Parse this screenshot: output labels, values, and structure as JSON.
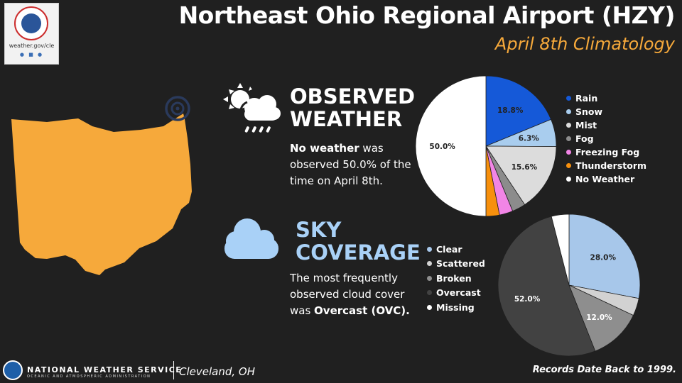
{
  "header": {
    "title": "Northeast Ohio Regional Airport (HZY)",
    "subtitle": "April 8th Climatology"
  },
  "logo": {
    "url": "weather.gov/cle",
    "social": "● ■ ●"
  },
  "observed": {
    "title_line1": "OBSERVED",
    "title_line2": "WEATHER",
    "desc_bold": "No weather",
    "desc_rest": " was observed 50.0% of the time on April 8th."
  },
  "sky": {
    "title_line1": "SKY",
    "title_line2": "COVERAGE",
    "desc_pre": "The most frequently observed cloud cover was ",
    "desc_bold": "Overcast (OVC)."
  },
  "footer": {
    "nws": "NATIONAL WEATHER SERVICE",
    "nws_sub": "OCEANIC AND ATMOSPHERIC ADMINISTRATION",
    "office": "Cleveland, OH",
    "records": "Records Date Back to 1999."
  },
  "icons": {
    "observed": "sun-cloud-rain-icon",
    "sky": "cloud-icon",
    "map": "ohio-map",
    "target": "airport-location-target-icon"
  },
  "colors": {
    "accent_orange": "#f6a93b",
    "sky_blue": "#a9d1f7",
    "ohio": "#f6a93b"
  },
  "chart_data": [
    {
      "type": "pie",
      "name": "Observed Weather",
      "categories": [
        "Rain",
        "Snow",
        "Mist",
        "Fog",
        "Freezing Fog",
        "Thunderstorm",
        "No Weather"
      ],
      "values": [
        18.8,
        6.3,
        15.6,
        3.1,
        3.1,
        3.1,
        50.0
      ],
      "labels": [
        "18.8%",
        "6.3%",
        "15.6%",
        "",
        "",
        "",
        "50.0%"
      ],
      "colors": [
        "#1559d8",
        "#a9cdee",
        "#dcdcdc",
        "#8c8c8c",
        "#f285e6",
        "#f7900d",
        "#ffffff"
      ],
      "legend_colors": [
        "#1559d8",
        "#a9cdee",
        "#dcdcdc",
        "#8c8c8c",
        "#f285e6",
        "#f7900d",
        "#ffffff"
      ],
      "legend_position": "right"
    },
    {
      "type": "pie",
      "name": "Sky Coverage",
      "categories": [
        "Clear",
        "Scattered",
        "Broken",
        "Overcast",
        "Missing"
      ],
      "values": [
        28.0,
        4.0,
        12.0,
        52.0,
        4.0
      ],
      "labels": [
        "28.0%",
        "",
        "12.0%",
        "52.0%",
        ""
      ],
      "colors": [
        "#a7c7ea",
        "#d2d2d2",
        "#8e8e8e",
        "#424242",
        "#ffffff"
      ],
      "legend_colors": [
        "#a7c7ea",
        "#d2d2d2",
        "#8e8e8e",
        "#424242",
        "#ffffff"
      ],
      "legend_position": "left"
    }
  ]
}
